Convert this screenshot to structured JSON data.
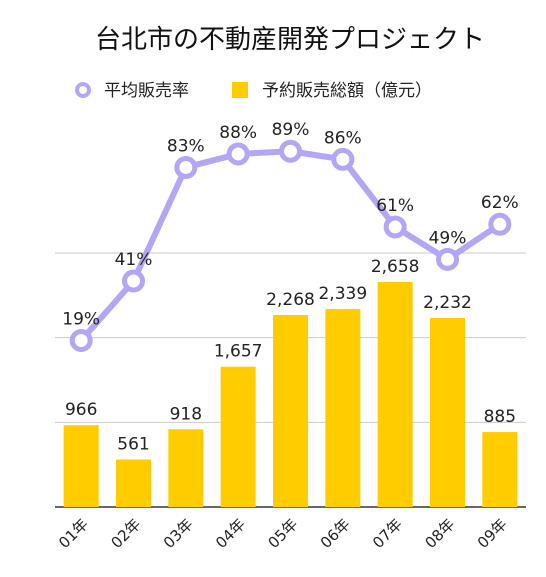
{
  "chart_data": {
    "type": "bar",
    "title": "台北市の不動産開発プロジェクト",
    "categories": [
      "01年",
      "02年",
      "03年",
      "04年",
      "05年",
      "06年",
      "07年",
      "08年",
      "09年"
    ],
    "series": [
      {
        "name": "予約販売総額（億元）",
        "type": "bar",
        "color": "#FFCC00",
        "values": [
          966,
          561,
          918,
          1657,
          2268,
          2339,
          2658,
          2232,
          885
        ],
        "labels": [
          "966",
          "561",
          "918",
          "1,657",
          "2,268",
          "2,339",
          "2,658",
          "2,232",
          "885"
        ]
      },
      {
        "name": "平均販売率",
        "type": "line",
        "color": "#B3A6F5",
        "values": [
          19,
          41,
          83,
          88,
          89,
          86,
          61,
          49,
          62
        ],
        "labels": [
          "19%",
          "41%",
          "83%",
          "88%",
          "89%",
          "86%",
          "61%",
          "49%",
          "62%"
        ]
      }
    ],
    "ylim_bar": [
      0,
      3000
    ],
    "ylim_line": [
      -40,
      100
    ],
    "grid": true,
    "legend_position": "top"
  }
}
